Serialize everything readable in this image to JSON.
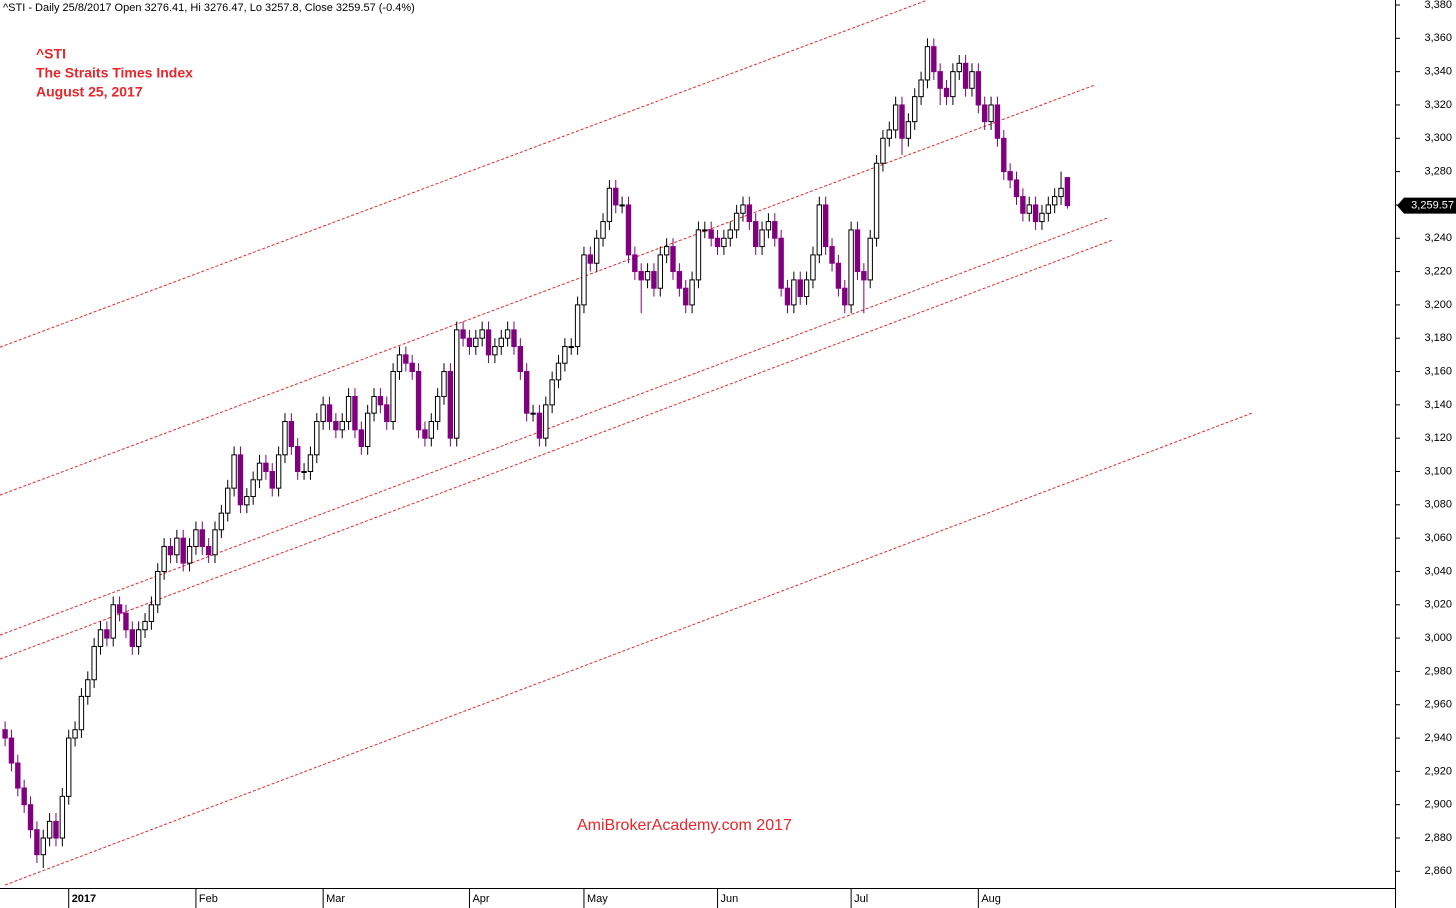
{
  "chart_data": {
    "type": "candlestick",
    "header": "^STI - Daily 25/8/2017 Open 3276.41, Hi 3276.47, Lo 3257.8, Close 3259.57 (-0.4%)",
    "annotations": [
      "^STI",
      "The Straits Times Index",
      "August 25, 2017"
    ],
    "watermark": "AmiBrokerAcademy.com  2017",
    "categories": [
      null,
      null,
      null,
      null,
      null,
      null,
      null,
      null,
      null,
      null,
      "2017",
      null,
      null,
      null,
      null,
      null,
      null,
      null,
      null,
      null,
      null,
      null,
      null,
      null,
      null,
      null,
      null,
      null,
      null,
      null,
      "Feb",
      null,
      null,
      null,
      null,
      null,
      null,
      null,
      null,
      null,
      null,
      null,
      null,
      null,
      null,
      null,
      null,
      null,
      null,
      null,
      "Mar",
      null,
      null,
      null,
      null,
      null,
      null,
      null,
      null,
      null,
      null,
      null,
      null,
      null,
      null,
      null,
      null,
      null,
      null,
      null,
      null,
      null,
      null,
      "Apr",
      null,
      null,
      null,
      null,
      null,
      null,
      null,
      null,
      null,
      null,
      null,
      null,
      null,
      null,
      null,
      null,
      null,
      "May",
      null,
      null,
      null,
      null,
      null,
      null,
      null,
      null,
      null,
      null,
      null,
      null,
      null,
      null,
      null,
      null,
      null,
      null,
      null,
      null,
      "Jun",
      null,
      null,
      null,
      null,
      null,
      null,
      null,
      null,
      null,
      null,
      null,
      null,
      null,
      null,
      null,
      null,
      null,
      null,
      null,
      null,
      "Jul",
      null,
      null,
      null,
      null,
      null,
      null,
      null,
      null,
      null,
      null,
      null,
      null,
      null,
      null,
      null,
      null,
      null,
      null,
      null,
      "Aug",
      null,
      null,
      null,
      null,
      null,
      null,
      null,
      null,
      null,
      null,
      null,
      null,
      null,
      null
    ],
    "open": [
      2945,
      2940,
      2925,
      2910,
      2900,
      2885,
      2870,
      2880,
      2890,
      2880,
      2905,
      2940,
      2945,
      2965,
      2975,
      2995,
      3005,
      3000,
      3020,
      3015,
      3005,
      2995,
      3005,
      3010,
      3020,
      3040,
      3055,
      3050,
      3060,
      3045,
      3055,
      3065,
      3055,
      3050,
      3065,
      3075,
      3090,
      3110,
      3080,
      3085,
      3095,
      3105,
      3100,
      3090,
      3110,
      3130,
      3115,
      3100,
      3100,
      3110,
      3130,
      3140,
      3130,
      3125,
      3130,
      3145,
      3125,
      3115,
      3135,
      3145,
      3140,
      3130,
      3160,
      3170,
      3165,
      3160,
      3125,
      3120,
      3130,
      3145,
      3160,
      3120,
      3185,
      3180,
      3175,
      3180,
      3185,
      3170,
      3175,
      3180,
      3185,
      3175,
      3160,
      3135,
      3135,
      3120,
      3140,
      3155,
      3165,
      3175,
      3175,
      3200,
      3230,
      3225,
      3240,
      3250,
      3270,
      3260,
      3260,
      3230,
      3220,
      3215,
      3220,
      3210,
      3230,
      3235,
      3220,
      3210,
      3200,
      3215,
      3245,
      3245,
      3240,
      3235,
      3240,
      3245,
      3255,
      3260,
      3250,
      3235,
      3245,
      3250,
      3240,
      3210,
      3200,
      3215,
      3205,
      3215,
      3230,
      3260,
      3235,
      3225,
      3210,
      3200,
      3245,
      3220,
      3215,
      3240,
      3285,
      3300,
      3305,
      3320,
      3300,
      3310,
      3325,
      3335,
      3355,
      3340,
      3330,
      3325,
      3340,
      3345,
      3330,
      3340,
      3320,
      3310,
      3320,
      3300,
      3280,
      3275,
      3265,
      3255,
      3260,
      3250,
      3255,
      3260,
      3265,
      3276.41
    ],
    "high": [
      2950,
      2945,
      2930,
      2915,
      2905,
      2890,
      2885,
      2895,
      2895,
      2910,
      2945,
      2950,
      2970,
      2980,
      3000,
      3010,
      3010,
      3025,
      3025,
      3020,
      3010,
      3010,
      3015,
      3025,
      3045,
      3060,
      3060,
      3065,
      3065,
      3060,
      3070,
      3070,
      3060,
      3070,
      3080,
      3095,
      3115,
      3115,
      3090,
      3100,
      3110,
      3110,
      3105,
      3115,
      3135,
      3135,
      3120,
      3105,
      3115,
      3135,
      3145,
      3145,
      3135,
      3135,
      3150,
      3150,
      3130,
      3140,
      3150,
      3150,
      3145,
      3165,
      3175,
      3175,
      3170,
      3165,
      3130,
      3135,
      3150,
      3165,
      3165,
      3190,
      3190,
      3185,
      3185,
      3190,
      3190,
      3180,
      3185,
      3190,
      3190,
      3180,
      3165,
      3140,
      3140,
      3145,
      3160,
      3170,
      3180,
      3180,
      3205,
      3235,
      3235,
      3245,
      3255,
      3275,
      3275,
      3265,
      3265,
      3235,
      3225,
      3225,
      3225,
      3235,
      3240,
      3240,
      3225,
      3215,
      3220,
      3250,
      3250,
      3250,
      3245,
      3245,
      3250,
      3260,
      3265,
      3265,
      3255,
      3250,
      3255,
      3255,
      3245,
      3215,
      3220,
      3220,
      3220,
      3235,
      3265,
      3265,
      3240,
      3230,
      3215,
      3250,
      3250,
      3225,
      3245,
      3290,
      3305,
      3310,
      3325,
      3325,
      3315,
      3330,
      3340,
      3360,
      3360,
      3345,
      3335,
      3345,
      3350,
      3350,
      3345,
      3345,
      3325,
      3325,
      3325,
      3305,
      3285,
      3280,
      3270,
      3265,
      3265,
      3260,
      3265,
      3270,
      3280,
      3276.47
    ],
    "low": [
      2935,
      2920,
      2905,
      2895,
      2880,
      2865,
      2862,
      2875,
      2875,
      2875,
      2900,
      2935,
      2940,
      2960,
      2970,
      2990,
      2995,
      2995,
      3010,
      3000,
      2990,
      2990,
      3000,
      3005,
      3015,
      3035,
      3045,
      3045,
      3040,
      3040,
      3050,
      3050,
      3045,
      3045,
      3060,
      3070,
      3085,
      3075,
      3075,
      3080,
      3090,
      3095,
      3085,
      3085,
      3105,
      3110,
      3095,
      3095,
      3095,
      3105,
      3125,
      3125,
      3120,
      3120,
      3125,
      3120,
      3110,
      3110,
      3130,
      3135,
      3125,
      3125,
      3155,
      3160,
      3155,
      3120,
      3115,
      3115,
      3125,
      3140,
      3115,
      3115,
      3175,
      3170,
      3170,
      3175,
      3165,
      3165,
      3170,
      3175,
      3170,
      3155,
      3130,
      3130,
      3115,
      3115,
      3135,
      3150,
      3160,
      3170,
      3170,
      3195,
      3220,
      3220,
      3235,
      3245,
      3255,
      3255,
      3225,
      3215,
      3195,
      3210,
      3205,
      3205,
      3225,
      3215,
      3205,
      3195,
      3195,
      3210,
      3240,
      3235,
      3230,
      3230,
      3235,
      3240,
      3250,
      3245,
      3230,
      3230,
      3240,
      3235,
      3205,
      3195,
      3195,
      3200,
      3200,
      3210,
      3225,
      3230,
      3220,
      3205,
      3195,
      3195,
      3215,
      3195,
      3210,
      3235,
      3280,
      3295,
      3300,
      3290,
      3295,
      3305,
      3320,
      3330,
      3335,
      3320,
      3320,
      3320,
      3335,
      3325,
      3325,
      3315,
      3305,
      3305,
      3295,
      3275,
      3270,
      3260,
      3250,
      3250,
      3245,
      3245,
      3250,
      3255,
      3260,
      3257.8
    ],
    "close": [
      2940,
      2925,
      2910,
      2900,
      2885,
      2870,
      2880,
      2890,
      2880,
      2905,
      2940,
      2945,
      2965,
      2975,
      2995,
      3005,
      3000,
      3020,
      3015,
      3005,
      2995,
      3005,
      3010,
      3020,
      3040,
      3055,
      3050,
      3060,
      3045,
      3055,
      3065,
      3055,
      3050,
      3065,
      3075,
      3090,
      3110,
      3080,
      3085,
      3095,
      3105,
      3100,
      3090,
      3110,
      3130,
      3115,
      3100,
      3100,
      3110,
      3130,
      3140,
      3130,
      3125,
      3130,
      3145,
      3125,
      3115,
      3135,
      3145,
      3140,
      3130,
      3160,
      3170,
      3165,
      3160,
      3125,
      3120,
      3130,
      3145,
      3160,
      3120,
      3185,
      3180,
      3175,
      3180,
      3185,
      3170,
      3175,
      3180,
      3185,
      3175,
      3160,
      3135,
      3135,
      3120,
      3140,
      3155,
      3165,
      3175,
      3175,
      3200,
      3230,
      3225,
      3240,
      3250,
      3270,
      3260,
      3260,
      3230,
      3220,
      3215,
      3220,
      3210,
      3230,
      3235,
      3220,
      3210,
      3200,
      3215,
      3245,
      3245,
      3240,
      3235,
      3240,
      3245,
      3255,
      3260,
      3250,
      3235,
      3245,
      3250,
      3240,
      3210,
      3200,
      3215,
      3205,
      3215,
      3230,
      3260,
      3235,
      3225,
      3210,
      3200,
      3245,
      3220,
      3215,
      3240,
      3285,
      3300,
      3305,
      3320,
      3300,
      3310,
      3325,
      3335,
      3355,
      3340,
      3330,
      3325,
      3340,
      3345,
      3330,
      3340,
      3320,
      3310,
      3320,
      3300,
      3280,
      3275,
      3265,
      3255,
      3260,
      3250,
      3255,
      3260,
      3265,
      3270,
      3259.57
    ],
    "up_color": "#ffffff",
    "down_color": "#800080",
    "outline_color": "#000000",
    "last_price": {
      "value": 3259.57,
      "label": "3,259.57"
    },
    "trendlines": [
      {
        "x": [
          -0.8,
          144.9
        ],
        "y": [
          3174.6,
          3382.8
        ]
      },
      {
        "x": [
          -0.8,
          171.2
        ],
        "y": [
          3085.8,
          3331.8
        ]
      },
      {
        "x": [
          -0.8,
          173.2
        ],
        "y": [
          3001.8,
          3252
        ]
      },
      {
        "x": [
          -0.8,
          174
        ],
        "y": [
          2987.4,
          3238.8
        ]
      },
      {
        "x": [
          0,
          196
        ],
        "y": [
          2851.8,
          3135
        ]
      }
    ],
    "trendline_color": "#e8262b",
    "xlim": [
      -0.8,
      218.5
    ],
    "ylim": [
      2850,
      3383
    ],
    "yticks": [
      {
        "value": 2860,
        "label": "2,860"
      },
      {
        "value": 2880,
        "label": "2,880"
      },
      {
        "value": 2900,
        "label": "2,900"
      },
      {
        "value": 2920,
        "label": "2,920"
      },
      {
        "value": 2940,
        "label": "2,940"
      },
      {
        "value": 2960,
        "label": "2,960"
      },
      {
        "value": 2980,
        "label": "2,980"
      },
      {
        "value": 3000,
        "label": "3,000"
      },
      {
        "value": 3020,
        "label": "3,020"
      },
      {
        "value": 3040,
        "label": "3,040"
      },
      {
        "value": 3060,
        "label": "3,060"
      },
      {
        "value": 3080,
        "label": "3,080"
      },
      {
        "value": 3100,
        "label": "3,100"
      },
      {
        "value": 3120,
        "label": "3,120"
      },
      {
        "value": 3140,
        "label": "3,140"
      },
      {
        "value": 3160,
        "label": "3,160"
      },
      {
        "value": 3180,
        "label": "3,180"
      },
      {
        "value": 3200,
        "label": "3,200"
      },
      {
        "value": 3220,
        "label": "3,220"
      },
      {
        "value": 3240,
        "label": "3,240"
      },
      {
        "value": 3260,
        "label": "3,260"
      },
      {
        "value": 3280,
        "label": "3,280"
      },
      {
        "value": 3300,
        "label": "3,300"
      },
      {
        "value": 3320,
        "label": "3,320"
      },
      {
        "value": 3340,
        "label": "3,340"
      },
      {
        "value": 3360,
        "label": "3,360"
      },
      {
        "value": 3380,
        "label": "3,380"
      }
    ]
  }
}
